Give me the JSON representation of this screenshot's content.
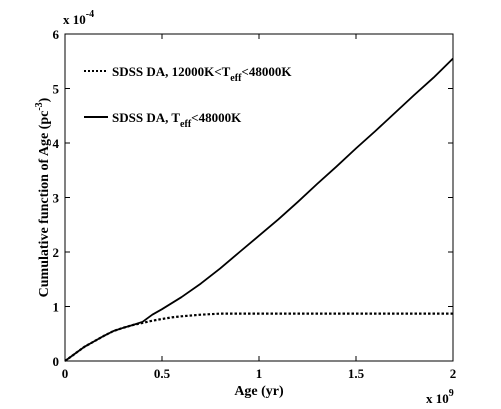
{
  "chart_data": {
    "type": "line",
    "xlabel": "Age (yr)",
    "ylabel": "Cumulative function of Age (pc",
    "ylabel_sup": "-3",
    "ylabel_tail": ")",
    "x_multiplier": {
      "base": "x 10",
      "exp": "9"
    },
    "y_multiplier": {
      "base": "x 10",
      "exp": "-4"
    },
    "xlim": [
      0,
      2
    ],
    "ylim": [
      0,
      6
    ],
    "x_ticks": [
      0,
      0.5,
      1,
      1.5,
      2
    ],
    "x_tick_labels": [
      "0",
      "0.5",
      "1",
      "1.5",
      "2"
    ],
    "y_ticks": [
      0,
      1,
      2,
      3,
      4,
      5,
      6
    ],
    "y_tick_labels": [
      "0",
      "1",
      "2",
      "3",
      "4",
      "5",
      "6"
    ],
    "grid": false,
    "legend_position": "top-left",
    "series": [
      {
        "legend_pre": "SDSS DA, 12000K<T",
        "legend_sub": "eff",
        "legend_post": "<48000K",
        "style": "dotted",
        "x": [
          0,
          0.05,
          0.1,
          0.15,
          0.2,
          0.25,
          0.3,
          0.35,
          0.4,
          0.45,
          0.5,
          0.55,
          0.6,
          0.7,
          0.8,
          0.9,
          1.0,
          1.2,
          1.4,
          1.6,
          1.8,
          2.0
        ],
        "y": [
          0,
          0.13,
          0.26,
          0.36,
          0.46,
          0.55,
          0.61,
          0.66,
          0.7,
          0.74,
          0.77,
          0.8,
          0.82,
          0.85,
          0.87,
          0.87,
          0.87,
          0.87,
          0.87,
          0.87,
          0.87,
          0.87
        ]
      },
      {
        "legend_pre": "SDSS DA, T",
        "legend_sub": "eff",
        "legend_post": "<48000K",
        "style": "solid",
        "x": [
          0,
          0.05,
          0.1,
          0.15,
          0.2,
          0.25,
          0.3,
          0.35,
          0.4,
          0.45,
          0.5,
          0.6,
          0.7,
          0.8,
          0.9,
          1.0,
          1.1,
          1.2,
          1.3,
          1.4,
          1.5,
          1.6,
          1.7,
          1.8,
          1.9,
          2.0
        ],
        "y": [
          0,
          0.13,
          0.26,
          0.36,
          0.46,
          0.55,
          0.61,
          0.66,
          0.72,
          0.85,
          0.95,
          1.17,
          1.42,
          1.7,
          2.0,
          2.3,
          2.6,
          2.92,
          3.25,
          3.57,
          3.9,
          4.22,
          4.55,
          4.88,
          5.2,
          5.55
        ]
      }
    ]
  }
}
